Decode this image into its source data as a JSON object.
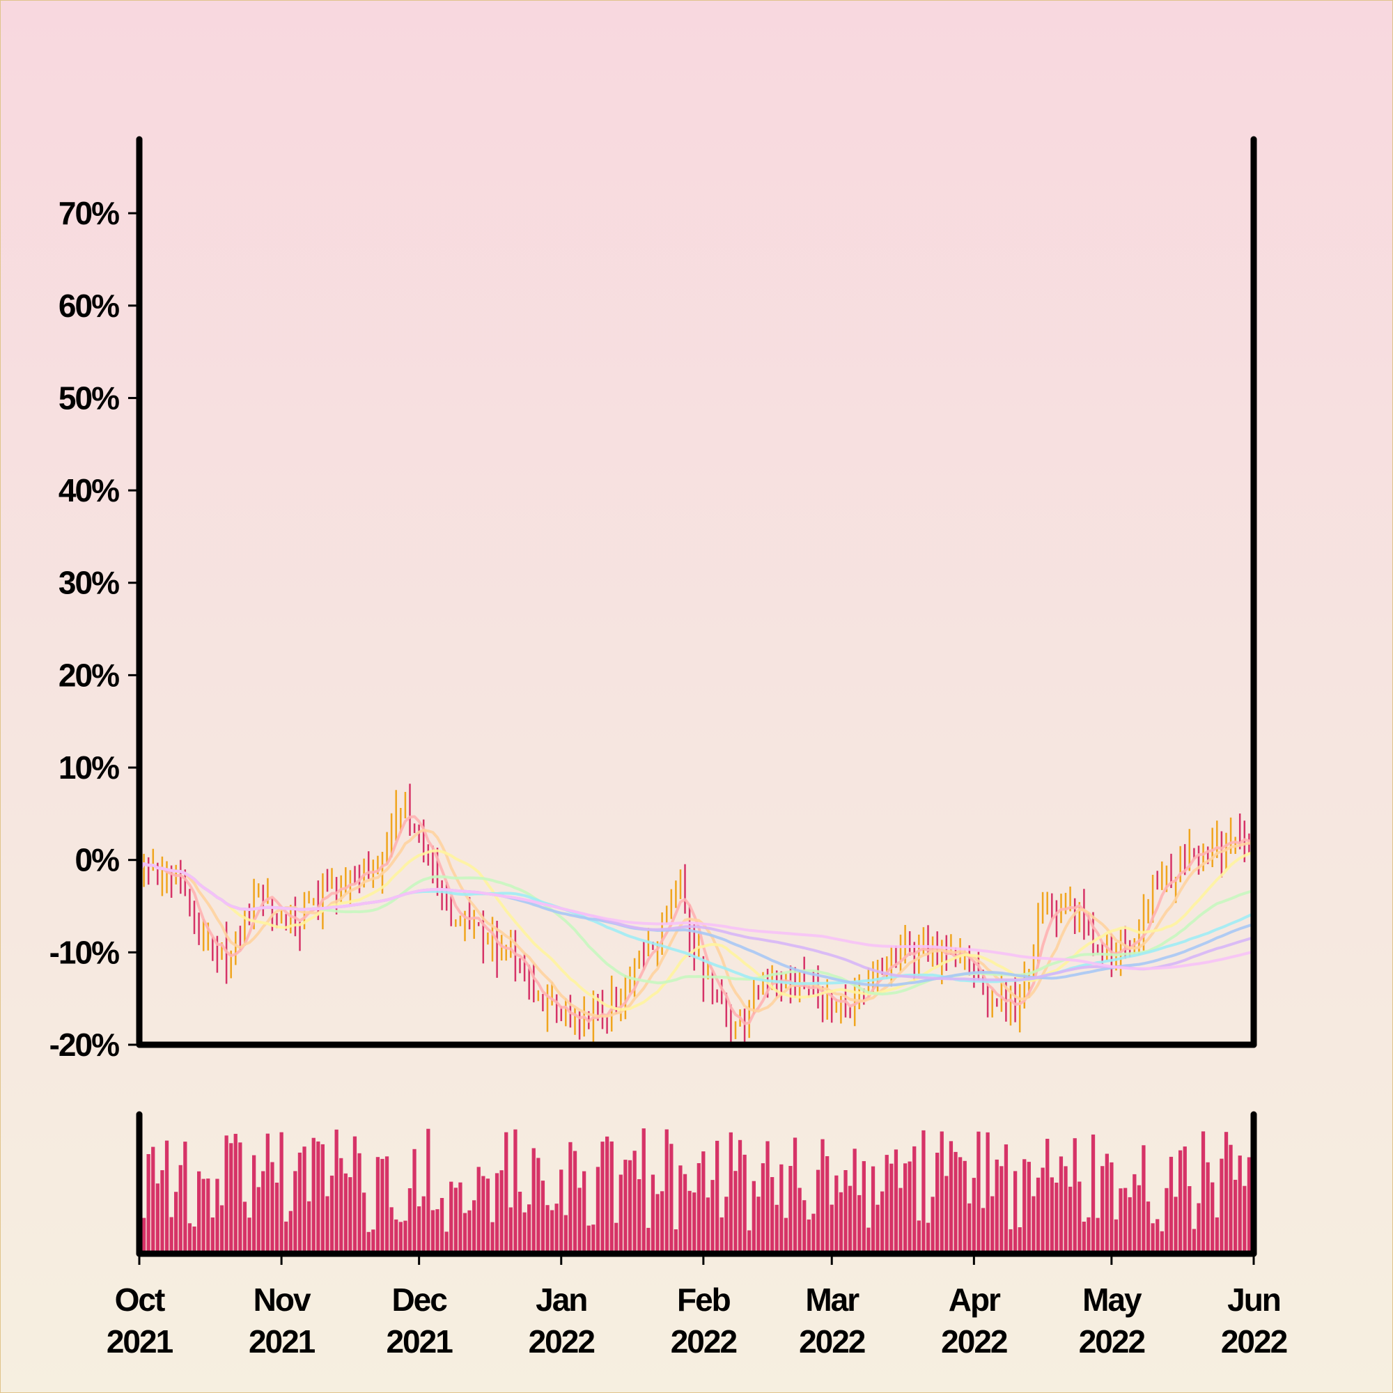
{
  "colors": {
    "up": "#f0a51e",
    "down": "#d63367",
    "volume": "#d63367",
    "axis": "#000000",
    "ma_lines": [
      "#ffb3b3",
      "#ffd3a0",
      "#fff4a0",
      "#c8f7c0",
      "#a0ecf5",
      "#a8c8f5",
      "#d7b6f7",
      "#f7c2f7"
    ]
  },
  "chart_data": {
    "type": "candlestick-ohlc",
    "title": "",
    "xlabel": "",
    "ylabel": "",
    "ylim": [
      -0.2,
      0.78
    ],
    "y_ticks": [
      {
        "value": -0.2,
        "label": "-20%"
      },
      {
        "value": -0.1,
        "label": "-10%"
      },
      {
        "value": 0.0,
        "label": "0%"
      },
      {
        "value": 0.1,
        "label": "10%"
      },
      {
        "value": 0.2,
        "label": "20%"
      },
      {
        "value": 0.3,
        "label": "30%"
      },
      {
        "value": 0.4,
        "label": "40%"
      },
      {
        "value": 0.5,
        "label": "50%"
      },
      {
        "value": 0.6,
        "label": "60%"
      },
      {
        "value": 0.7,
        "label": "70%"
      }
    ],
    "x_range": [
      "2021-10-01",
      "2022-06-01"
    ],
    "x_ticks": [
      {
        "date": "2021-10-01",
        "month": "Oct",
        "year": "2021"
      },
      {
        "date": "2021-11-01",
        "month": "Nov",
        "year": "2021"
      },
      {
        "date": "2021-12-01",
        "month": "Dec",
        "year": "2021"
      },
      {
        "date": "2022-01-01",
        "month": "Jan",
        "year": "2022"
      },
      {
        "date": "2022-02-01",
        "month": "Feb",
        "year": "2022"
      },
      {
        "date": "2022-03-01",
        "month": "Mar",
        "year": "2022"
      },
      {
        "date": "2022-04-01",
        "month": "Apr",
        "year": "2022"
      },
      {
        "date": "2022-05-01",
        "month": "May",
        "year": "2022"
      },
      {
        "date": "2022-06-01",
        "month": "Jun",
        "year": "2022"
      }
    ],
    "close_anchors": [
      {
        "date": "2021-10-01",
        "value": 0.0
      },
      {
        "date": "2021-10-08",
        "value": -0.02
      },
      {
        "date": "2021-10-15",
        "value": -0.08
      },
      {
        "date": "2021-10-20",
        "value": -0.11
      },
      {
        "date": "2021-10-27",
        "value": -0.04
      },
      {
        "date": "2021-11-03",
        "value": -0.07
      },
      {
        "date": "2021-11-12",
        "value": -0.03
      },
      {
        "date": "2021-11-20",
        "value": -0.01
      },
      {
        "date": "2021-11-28",
        "value": 0.05
      },
      {
        "date": "2021-12-04",
        "value": -0.02
      },
      {
        "date": "2021-12-10",
        "value": -0.07
      },
      {
        "date": "2021-12-20",
        "value": -0.1
      },
      {
        "date": "2021-12-30",
        "value": -0.16
      },
      {
        "date": "2022-01-06",
        "value": -0.17
      },
      {
        "date": "2022-01-12",
        "value": -0.16
      },
      {
        "date": "2022-01-20",
        "value": -0.1
      },
      {
        "date": "2022-01-26",
        "value": -0.04
      },
      {
        "date": "2022-02-02",
        "value": -0.13
      },
      {
        "date": "2022-02-08",
        "value": -0.18
      },
      {
        "date": "2022-02-16",
        "value": -0.13
      },
      {
        "date": "2022-02-24",
        "value": -0.14
      },
      {
        "date": "2022-03-04",
        "value": -0.16
      },
      {
        "date": "2022-03-12",
        "value": -0.12
      },
      {
        "date": "2022-03-20",
        "value": -0.1
      },
      {
        "date": "2022-03-28",
        "value": -0.1
      },
      {
        "date": "2022-04-04",
        "value": -0.14
      },
      {
        "date": "2022-04-10",
        "value": -0.16
      },
      {
        "date": "2022-04-16",
        "value": -0.06
      },
      {
        "date": "2022-04-22",
        "value": -0.05
      },
      {
        "date": "2022-04-28",
        "value": -0.11
      },
      {
        "date": "2022-05-06",
        "value": -0.09
      },
      {
        "date": "2022-05-12",
        "value": -0.02
      },
      {
        "date": "2022-05-20",
        "value": 0.01
      },
      {
        "date": "2022-06-01",
        "value": 0.02
      }
    ],
    "moving_average_windows": [
      5,
      10,
      20,
      40,
      60,
      80,
      100,
      150
    ],
    "volume_panel": true
  }
}
